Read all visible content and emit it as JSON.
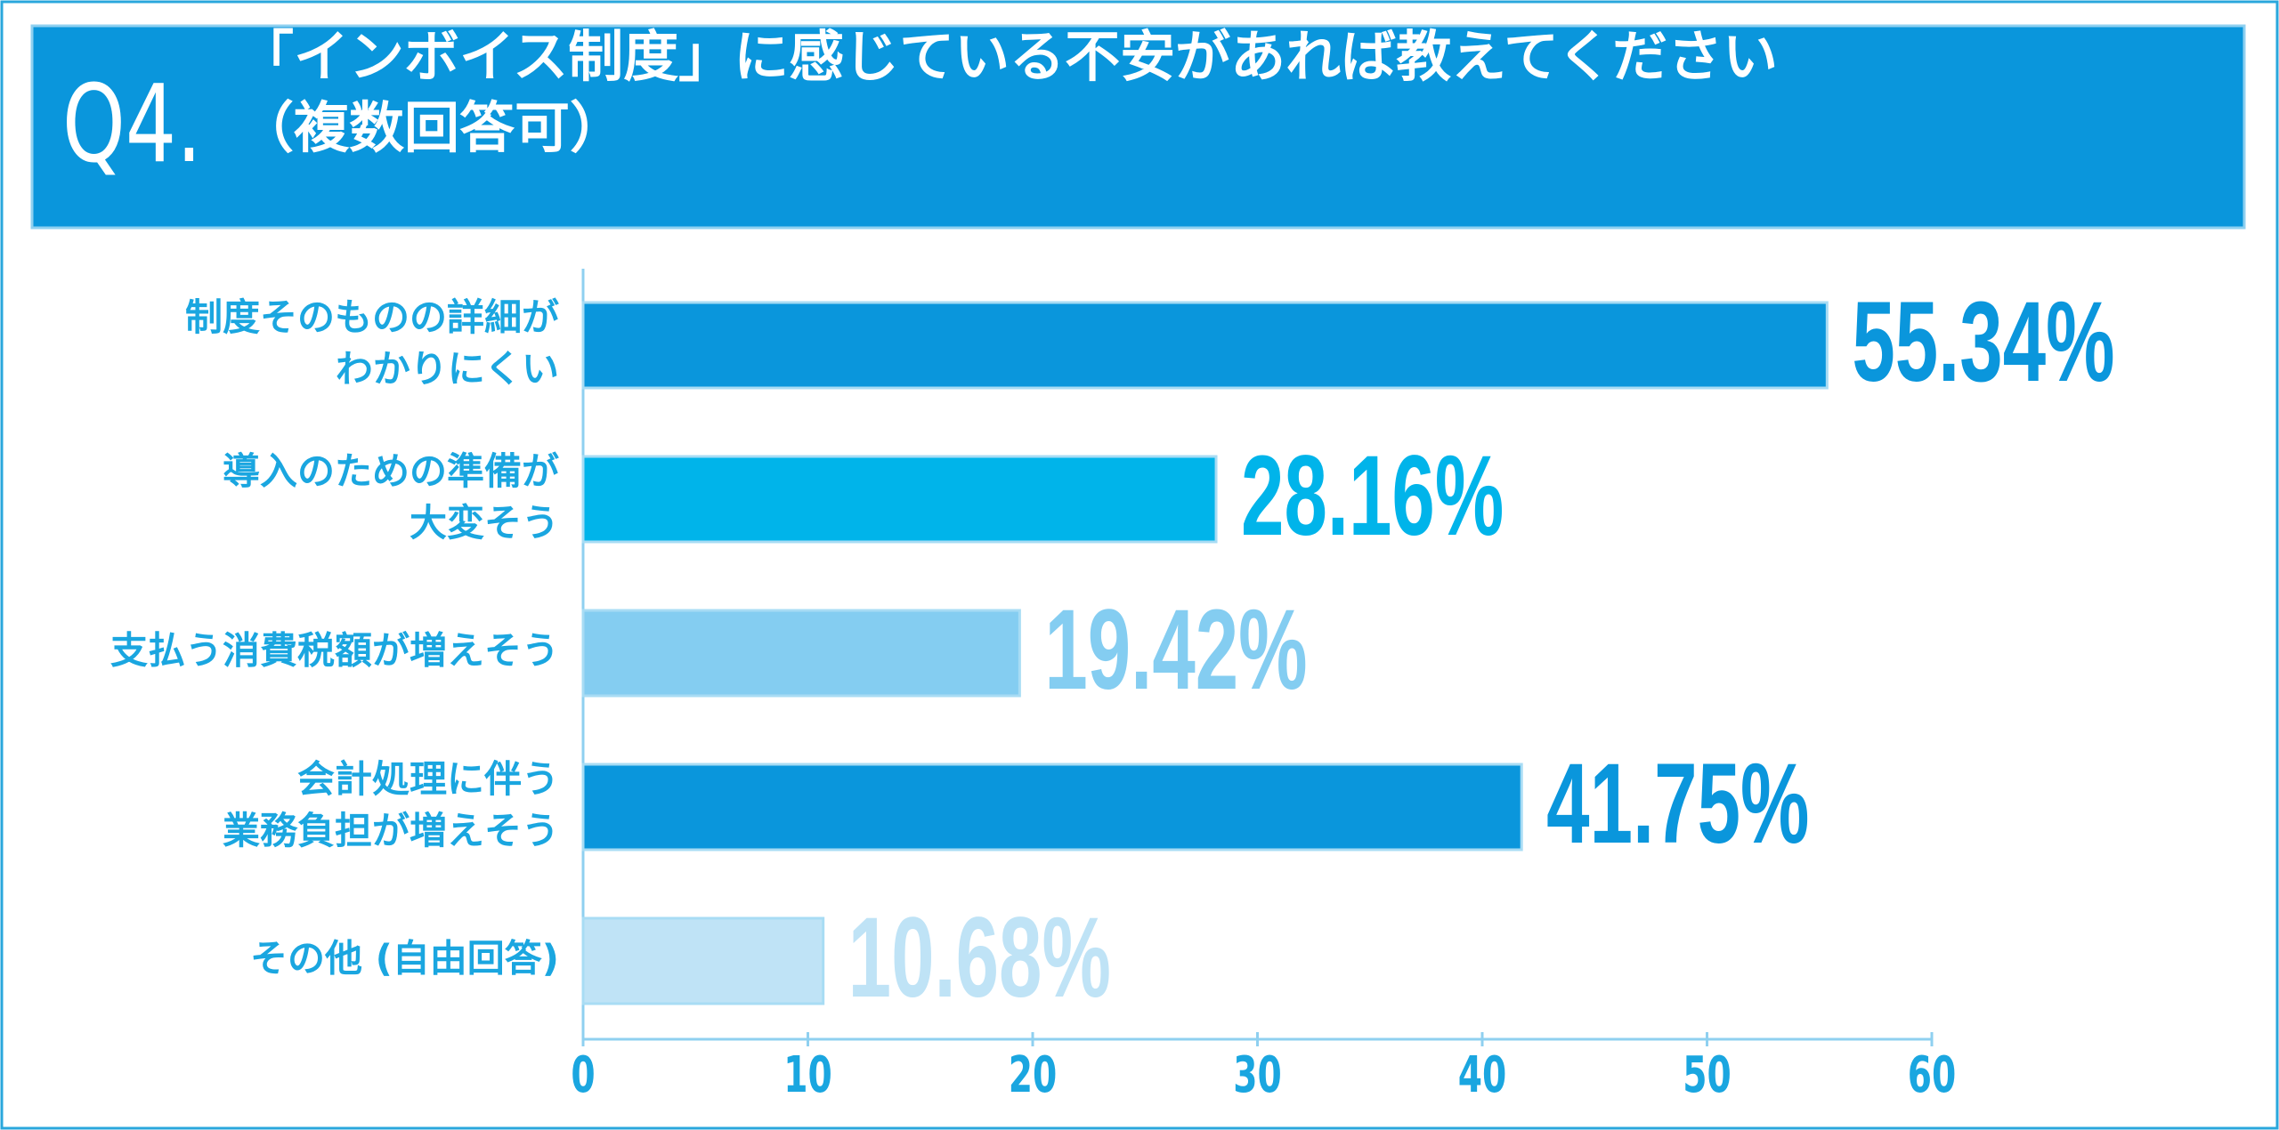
{
  "chart_data": {
    "type": "bar",
    "orientation": "horizontal",
    "title_number": "Q4.",
    "title": "「インボイス制度」に感じている不安があれば教えてください\n（複数回答可）",
    "categories": [
      "制度そのものの詳細が\nわかりにくい",
      "導入のための準備が\n大変そう",
      "支払う消費税額が増えそう",
      "会計処理に伴う\n業務負担が増えそう",
      "その他 (自由回答)"
    ],
    "values": [
      55.34,
      28.16,
      19.42,
      41.75,
      10.68
    ],
    "value_labels": [
      "55.34%",
      "28.16%",
      "19.42%",
      "41.75%",
      "10.68%"
    ],
    "colors": [
      "#0a96dc",
      "#00b4ea",
      "#84cdf1",
      "#0a96dc",
      "#bfe3f6"
    ],
    "xlim": [
      0,
      60
    ],
    "xticks": [
      0,
      10,
      20,
      30,
      40,
      50,
      60
    ]
  }
}
